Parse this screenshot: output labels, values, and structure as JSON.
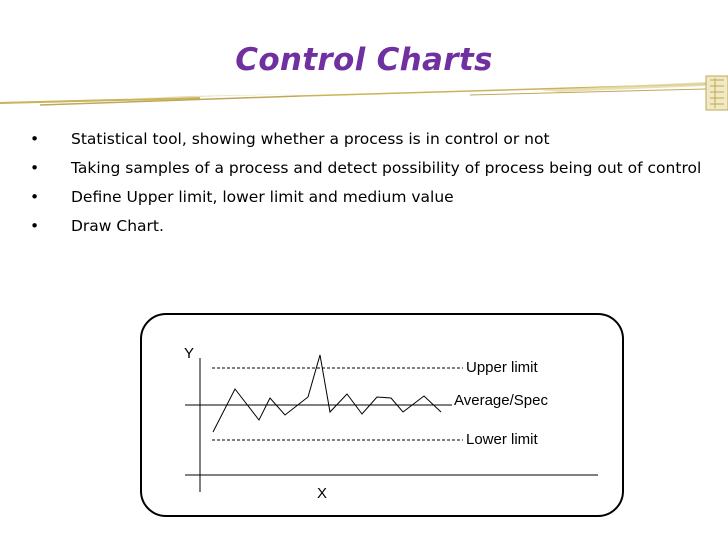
{
  "slide": {
    "title": "Control Charts",
    "bullets": [
      "Statistical tool, showing whether a process is in control or not",
      "Taking samples of a process and detect possibility of process being out of control",
      "Define Upper limit, lower limit and medium value",
      "Draw Chart."
    ],
    "bullet_glyph": "•"
  },
  "diagram": {
    "axis_y_label": "Y",
    "axis_x_label": "X",
    "upper_label": "Upper limit",
    "average_label": "Average/Spec",
    "lower_label": "Lower limit"
  },
  "colors": {
    "title": "#7030a0",
    "decoration": "#c9b458"
  }
}
